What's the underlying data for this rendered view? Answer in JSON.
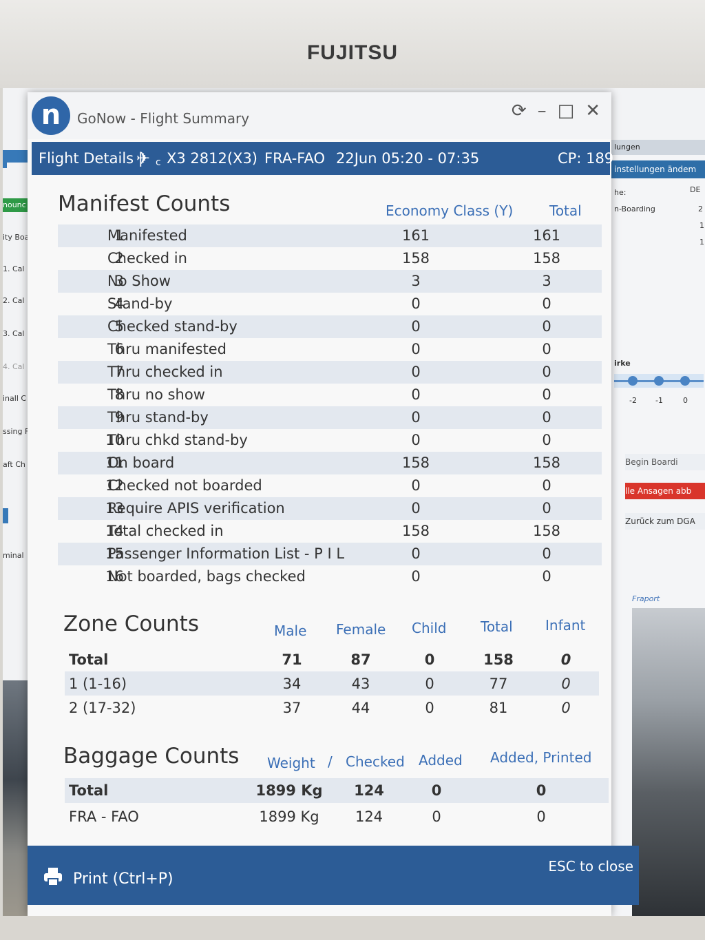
{
  "monitor": {
    "brand": "FUJITSU"
  },
  "background_left": {
    "tab": "nounc",
    "items": [
      "ity Boa",
      "1. Cal",
      "2. Cal",
      "3. Cal",
      "4. Cal",
      "inall C",
      "ssing F",
      "aft Ch",
      "minal"
    ]
  },
  "background_right": {
    "header": "lungen",
    "bar": "instellungen ändem",
    "label_he": "he:",
    "label_de": "DE",
    "boarding": "n-Boarding",
    "n2": "2",
    "n1a": "1",
    "n1b": "1",
    "staerke": "irke",
    "ticks": [
      "-2",
      "-1",
      "0"
    ],
    "begin_boarding": "Begin Boardi",
    "alle_ansagen": "lle Ansagen abb",
    "zurueck": "Zurück zum DGA",
    "fraport": "Fraport"
  },
  "window": {
    "logo_letter": "n",
    "title": "GoNow - Flight Summary",
    "controls": [
      "⟳",
      "–",
      "□",
      "✕"
    ]
  },
  "flight": {
    "details_label": "Flight Details |",
    "plane_icon": "✈",
    "plane_suffix": "c",
    "flight_no": "X3 2812(X3)",
    "route": "FRA-FAO",
    "date_time": "22Jun 05:20 - 07:35",
    "cp": "CP: 189"
  },
  "manifest": {
    "title": "Manifest Counts",
    "col_class": "Economy Class (Y)",
    "col_total": "Total",
    "rows": [
      {
        "n": "1",
        "label": "Manifested",
        "y": "161",
        "total": "161"
      },
      {
        "n": "2",
        "label": "Checked in",
        "y": "158",
        "total": "158"
      },
      {
        "n": "3",
        "label": "No Show",
        "y": "3",
        "total": "3"
      },
      {
        "n": "4",
        "label": "Stand-by",
        "y": "0",
        "total": "0"
      },
      {
        "n": "5",
        "label": "Checked stand-by",
        "y": "0",
        "total": "0"
      },
      {
        "n": "6",
        "label": "Thru manifested",
        "y": "0",
        "total": "0"
      },
      {
        "n": "7",
        "label": "Thru checked in",
        "y": "0",
        "total": "0"
      },
      {
        "n": "8",
        "label": "Thru no show",
        "y": "0",
        "total": "0"
      },
      {
        "n": "9",
        "label": "Thru stand-by",
        "y": "0",
        "total": "0"
      },
      {
        "n": "10",
        "label": "Thru chkd stand-by",
        "y": "0",
        "total": "0"
      },
      {
        "n": "11",
        "label": "On board",
        "y": "158",
        "total": "158"
      },
      {
        "n": "12",
        "label": "Checked not boarded",
        "y": "0",
        "total": "0"
      },
      {
        "n": "13",
        "label": "Require APIS verification",
        "y": "0",
        "total": "0"
      },
      {
        "n": "14",
        "label": "Total checked in",
        "y": "158",
        "total": "158"
      },
      {
        "n": "15",
        "label": "Passenger Information List - P I L",
        "y": "0",
        "total": "0"
      },
      {
        "n": "16",
        "label": "Not boarded, bags checked",
        "y": "0",
        "total": "0"
      }
    ]
  },
  "zone": {
    "title": "Zone Counts",
    "headers": [
      "Male",
      "Female",
      "Child",
      "Total",
      "Infant"
    ],
    "rows": [
      {
        "label": "Total",
        "male": "71",
        "female": "87",
        "child": "0",
        "total": "158",
        "infant": "0"
      },
      {
        "label": "1 (1-16)",
        "male": "34",
        "female": "43",
        "child": "0",
        "total": "77",
        "infant": "0"
      },
      {
        "label": "2 (17-32)",
        "male": "37",
        "female": "44",
        "child": "0",
        "total": "81",
        "infant": "0"
      }
    ]
  },
  "baggage": {
    "title": "Baggage Counts",
    "headers": [
      "Weight",
      "/",
      "Checked",
      "Added",
      "Added, Printed"
    ],
    "rows": [
      {
        "label": "Total",
        "weight": "1899 Kg",
        "checked": "124",
        "added": "0",
        "printed": "0"
      },
      {
        "label": "FRA - FAO",
        "weight": "1899 Kg",
        "checked": "124",
        "added": "0",
        "printed": "0"
      }
    ]
  },
  "footer": {
    "print": "Print (Ctrl+P)",
    "esc": "ESC to close"
  }
}
